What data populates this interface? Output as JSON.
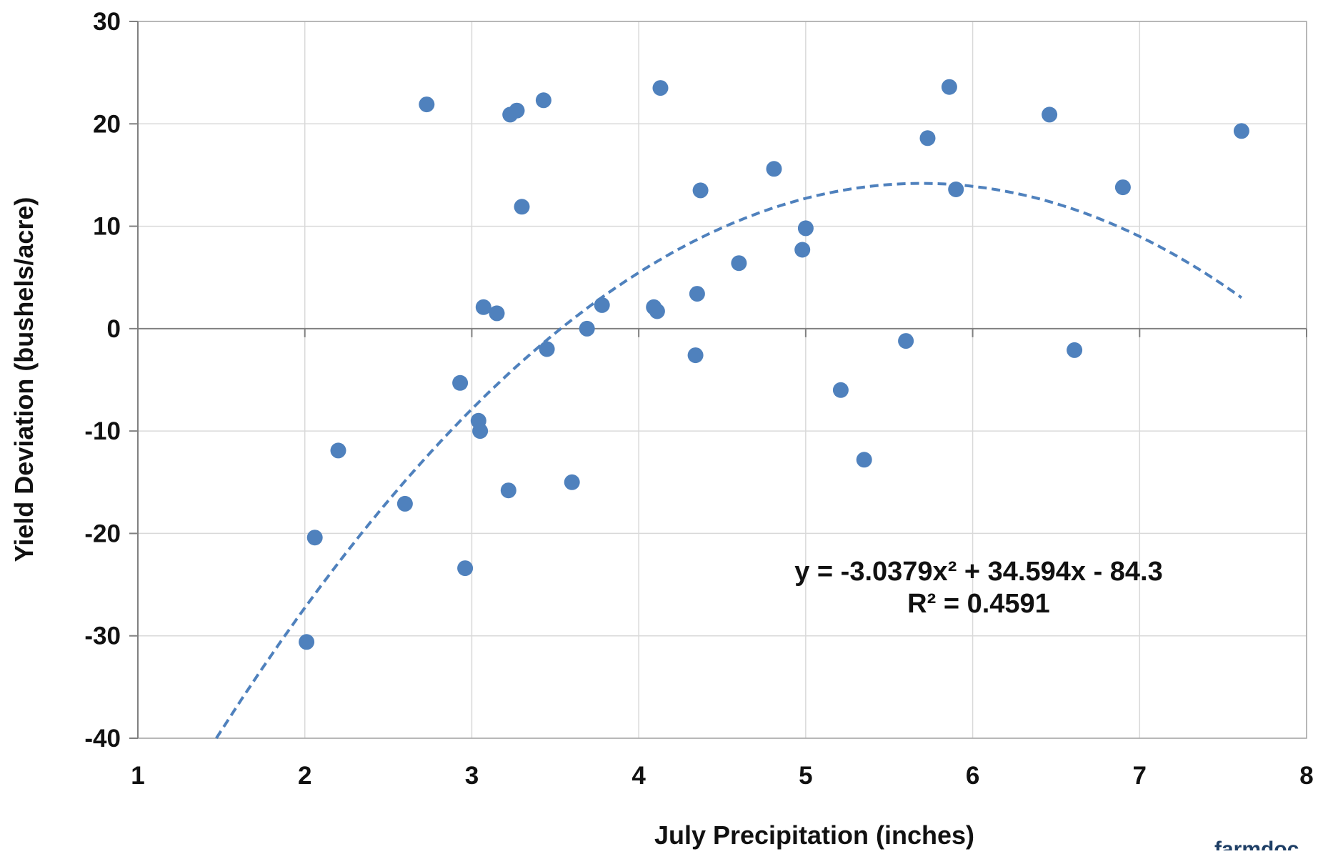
{
  "chart_data": {
    "type": "scatter",
    "title": "",
    "xlabel": "July Precipitation (inches)",
    "ylabel": "Yield Deviation (bushels/acre)",
    "xlim": [
      1,
      8
    ],
    "ylim": [
      -40,
      30
    ],
    "x_ticks": [
      1,
      2,
      3,
      4,
      5,
      6,
      7,
      8
    ],
    "y_ticks": [
      -40,
      -30,
      -20,
      -10,
      0,
      10,
      20,
      30
    ],
    "grid": true,
    "legend": "none",
    "point_color": "#4f81bd",
    "trendline_color": "#4f81bd",
    "series": [
      {
        "x": [
          2.01,
          2.06,
          2.2,
          2.6,
          2.73,
          2.93,
          2.96,
          3.04,
          3.05,
          3.07,
          3.15,
          3.22,
          3.23,
          3.27,
          3.3,
          3.43,
          3.45,
          3.6,
          3.69,
          3.78,
          4.09,
          4.11,
          4.13,
          4.34,
          4.35,
          4.37,
          4.6,
          4.81,
          4.98,
          5.0,
          5.21,
          5.35,
          5.6,
          5.73,
          5.86,
          5.9,
          6.46,
          6.61,
          6.9,
          7.61
        ],
        "y": [
          -30.6,
          -20.4,
          -11.9,
          -17.1,
          21.9,
          -5.3,
          -23.4,
          -9.0,
          -10.0,
          2.1,
          1.5,
          -15.8,
          20.9,
          21.3,
          11.9,
          22.3,
          -2.0,
          -15.0,
          0.0,
          2.3,
          2.1,
          1.7,
          23.5,
          -2.6,
          3.4,
          13.5,
          6.4,
          15.6,
          7.7,
          9.8,
          -6.0,
          -12.8,
          -1.2,
          18.6,
          23.6,
          13.6,
          20.9,
          -2.1,
          13.8,
          19.3
        ]
      }
    ],
    "trendline": {
      "type": "polynomial",
      "style": "dashed",
      "coefficients": [
        -3.0379,
        34.594,
        -84.3
      ],
      "x_range": [
        1.47,
        7.61
      ],
      "equation_text": "y = -3.0379x² + 34.594x - 84.3",
      "r2_text": "R² = 0.4591"
    }
  },
  "watermark": "farmdoc"
}
